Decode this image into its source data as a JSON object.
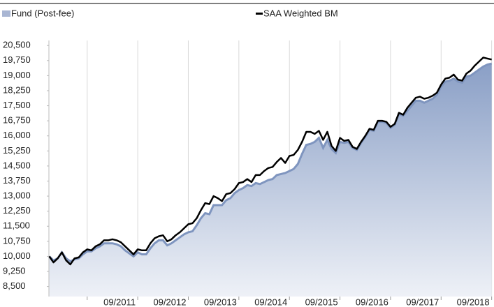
{
  "chart_data": {
    "type": "area-line",
    "categories": [
      null,
      null,
      null,
      null,
      null,
      null,
      null,
      null,
      null,
      null,
      null,
      null,
      null,
      null,
      null,
      null,
      null,
      null,
      null,
      null,
      null,
      "09/2011",
      null,
      null,
      null,
      null,
      null,
      null,
      null,
      null,
      null,
      null,
      null,
      "09/2012",
      null,
      null,
      null,
      null,
      null,
      null,
      null,
      null,
      null,
      null,
      null,
      "09/2013",
      null,
      null,
      null,
      null,
      null,
      null,
      null,
      null,
      null,
      null,
      null,
      "09/2014",
      null,
      null,
      null,
      null,
      null,
      null,
      null,
      null,
      null,
      null,
      null,
      "09/2015",
      null,
      null,
      null,
      null,
      null,
      null,
      null,
      null,
      null,
      null,
      null,
      "09/2016",
      null,
      null,
      null,
      null,
      null,
      null,
      null,
      null,
      null,
      null,
      null,
      "09/2017",
      null,
      null,
      null,
      null,
      null,
      null,
      null,
      null,
      null,
      null,
      null,
      "09/2018"
    ],
    "series": [
      {
        "name": "Fund (Post-fee)",
        "color": "#7f95bf",
        "kind": "area",
        "values": [
          10000,
          9800,
          9900,
          10200,
          9900,
          9750,
          9850,
          9900,
          10100,
          10250,
          10250,
          10400,
          10500,
          10650,
          10650,
          10650,
          10600,
          10500,
          10300,
          10150,
          10000,
          10200,
          10100,
          10100,
          10400,
          10650,
          10800,
          10800,
          10550,
          10650,
          10800,
          10950,
          11100,
          11200,
          11250,
          11550,
          11900,
          12150,
          12100,
          12550,
          12550,
          12550,
          12800,
          12900,
          13150,
          13300,
          13400,
          13550,
          13500,
          13650,
          13600,
          13700,
          13800,
          13850,
          14050,
          14100,
          14150,
          14250,
          14350,
          14600,
          15100,
          15550,
          15600,
          15700,
          15900,
          15400,
          15800,
          15350,
          15150,
          15700,
          15650,
          15700,
          15400,
          15300,
          15650,
          15950,
          16300,
          16250,
          16700,
          16700,
          16650,
          16400,
          16550,
          17100,
          17000,
          17250,
          17500,
          17750,
          17750,
          17650,
          17750,
          17850,
          18050,
          18450,
          18700,
          18750,
          18850,
          18700,
          18650,
          18950,
          19000,
          19150,
          19300,
          19450,
          19550,
          19600
        ]
      },
      {
        "name": "SAA Weighted BM",
        "color": "#000000",
        "kind": "line",
        "values": [
          10000,
          9700,
          9900,
          10200,
          9800,
          9600,
          9900,
          9950,
          10200,
          10350,
          10300,
          10500,
          10600,
          10800,
          10800,
          10850,
          10800,
          10700,
          10500,
          10300,
          10100,
          10350,
          10300,
          10300,
          10650,
          10900,
          11000,
          11050,
          10750,
          10850,
          11050,
          11200,
          11400,
          11600,
          11650,
          11900,
          12300,
          12650,
          12600,
          13000,
          12900,
          12750,
          13100,
          13150,
          13350,
          13650,
          13700,
          13850,
          13700,
          14050,
          14050,
          14250,
          14400,
          14450,
          14700,
          14900,
          14650,
          15000,
          15050,
          15300,
          15700,
          16200,
          16200,
          16100,
          16250,
          15800,
          16200,
          15500,
          15250,
          15900,
          15750,
          15800,
          15450,
          15350,
          15700,
          16000,
          16350,
          16300,
          16750,
          16750,
          16700,
          16450,
          16600,
          17150,
          17050,
          17400,
          17650,
          17900,
          17950,
          17850,
          17900,
          18000,
          18150,
          18550,
          18850,
          18900,
          19050,
          18800,
          18750,
          19100,
          19250,
          19500,
          19700,
          19900,
          19850,
          19800
        ]
      }
    ],
    "ylim": [
      8000,
      20750
    ],
    "yticks": [
      {
        "value": 8500,
        "label": "8,500"
      },
      {
        "value": 9250,
        "label": "9,250"
      },
      {
        "value": 10000,
        "label": "10,000"
      },
      {
        "value": 10750,
        "label": "10,750"
      },
      {
        "value": 11500,
        "label": "11,500"
      },
      {
        "value": 12250,
        "label": "12,250"
      },
      {
        "value": 13000,
        "label": "13,000"
      },
      {
        "value": 13750,
        "label": "13,750"
      },
      {
        "value": 14500,
        "label": "14,500"
      },
      {
        "value": 15250,
        "label": "15,250"
      },
      {
        "value": 16000,
        "label": "16,000"
      },
      {
        "value": 16750,
        "label": "16,750"
      },
      {
        "value": 17500,
        "label": "17,500"
      },
      {
        "value": 18250,
        "label": "18,250"
      },
      {
        "value": 19000,
        "label": "19,000"
      },
      {
        "value": 19750,
        "label": "19,750"
      },
      {
        "value": 20500,
        "label": "20,500"
      }
    ],
    "grid": "vertical"
  }
}
